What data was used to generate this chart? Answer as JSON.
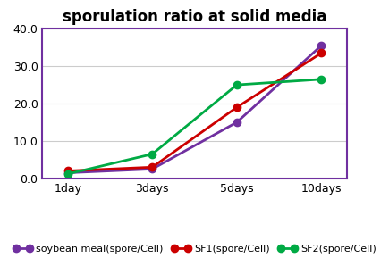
{
  "title": "sporulation ratio at solid media",
  "x_labels": [
    "1day",
    "3days",
    "5days",
    "10days"
  ],
  "x_values": [
    0,
    1,
    2,
    3
  ],
  "series": [
    {
      "label": "soybean meal(spore/Cell)",
      "color": "#7030A0",
      "marker": "o",
      "values": [
        1.5,
        2.5,
        15.0,
        35.5
      ]
    },
    {
      "label": "SF1(spore/Cell)",
      "color": "#CC0000",
      "marker": "o",
      "values": [
        2.0,
        3.0,
        19.0,
        33.5
      ]
    },
    {
      "label": "SF2(spore/Cell)",
      "color": "#00AA44",
      "marker": "o",
      "values": [
        1.2,
        6.5,
        25.0,
        26.5
      ]
    }
  ],
  "ylim": [
    0,
    40
  ],
  "yticks": [
    0.0,
    10.0,
    20.0,
    30.0,
    40.0
  ],
  "xlim": [
    -0.3,
    3.3
  ],
  "background_color": "#FFFFFF",
  "plot_bg_color": "#FFFFFF",
  "title_fontsize": 12,
  "legend_fontsize": 8,
  "tick_fontsize": 9,
  "linewidth": 2.0,
  "markersize": 6,
  "border_color": "#7030A0"
}
